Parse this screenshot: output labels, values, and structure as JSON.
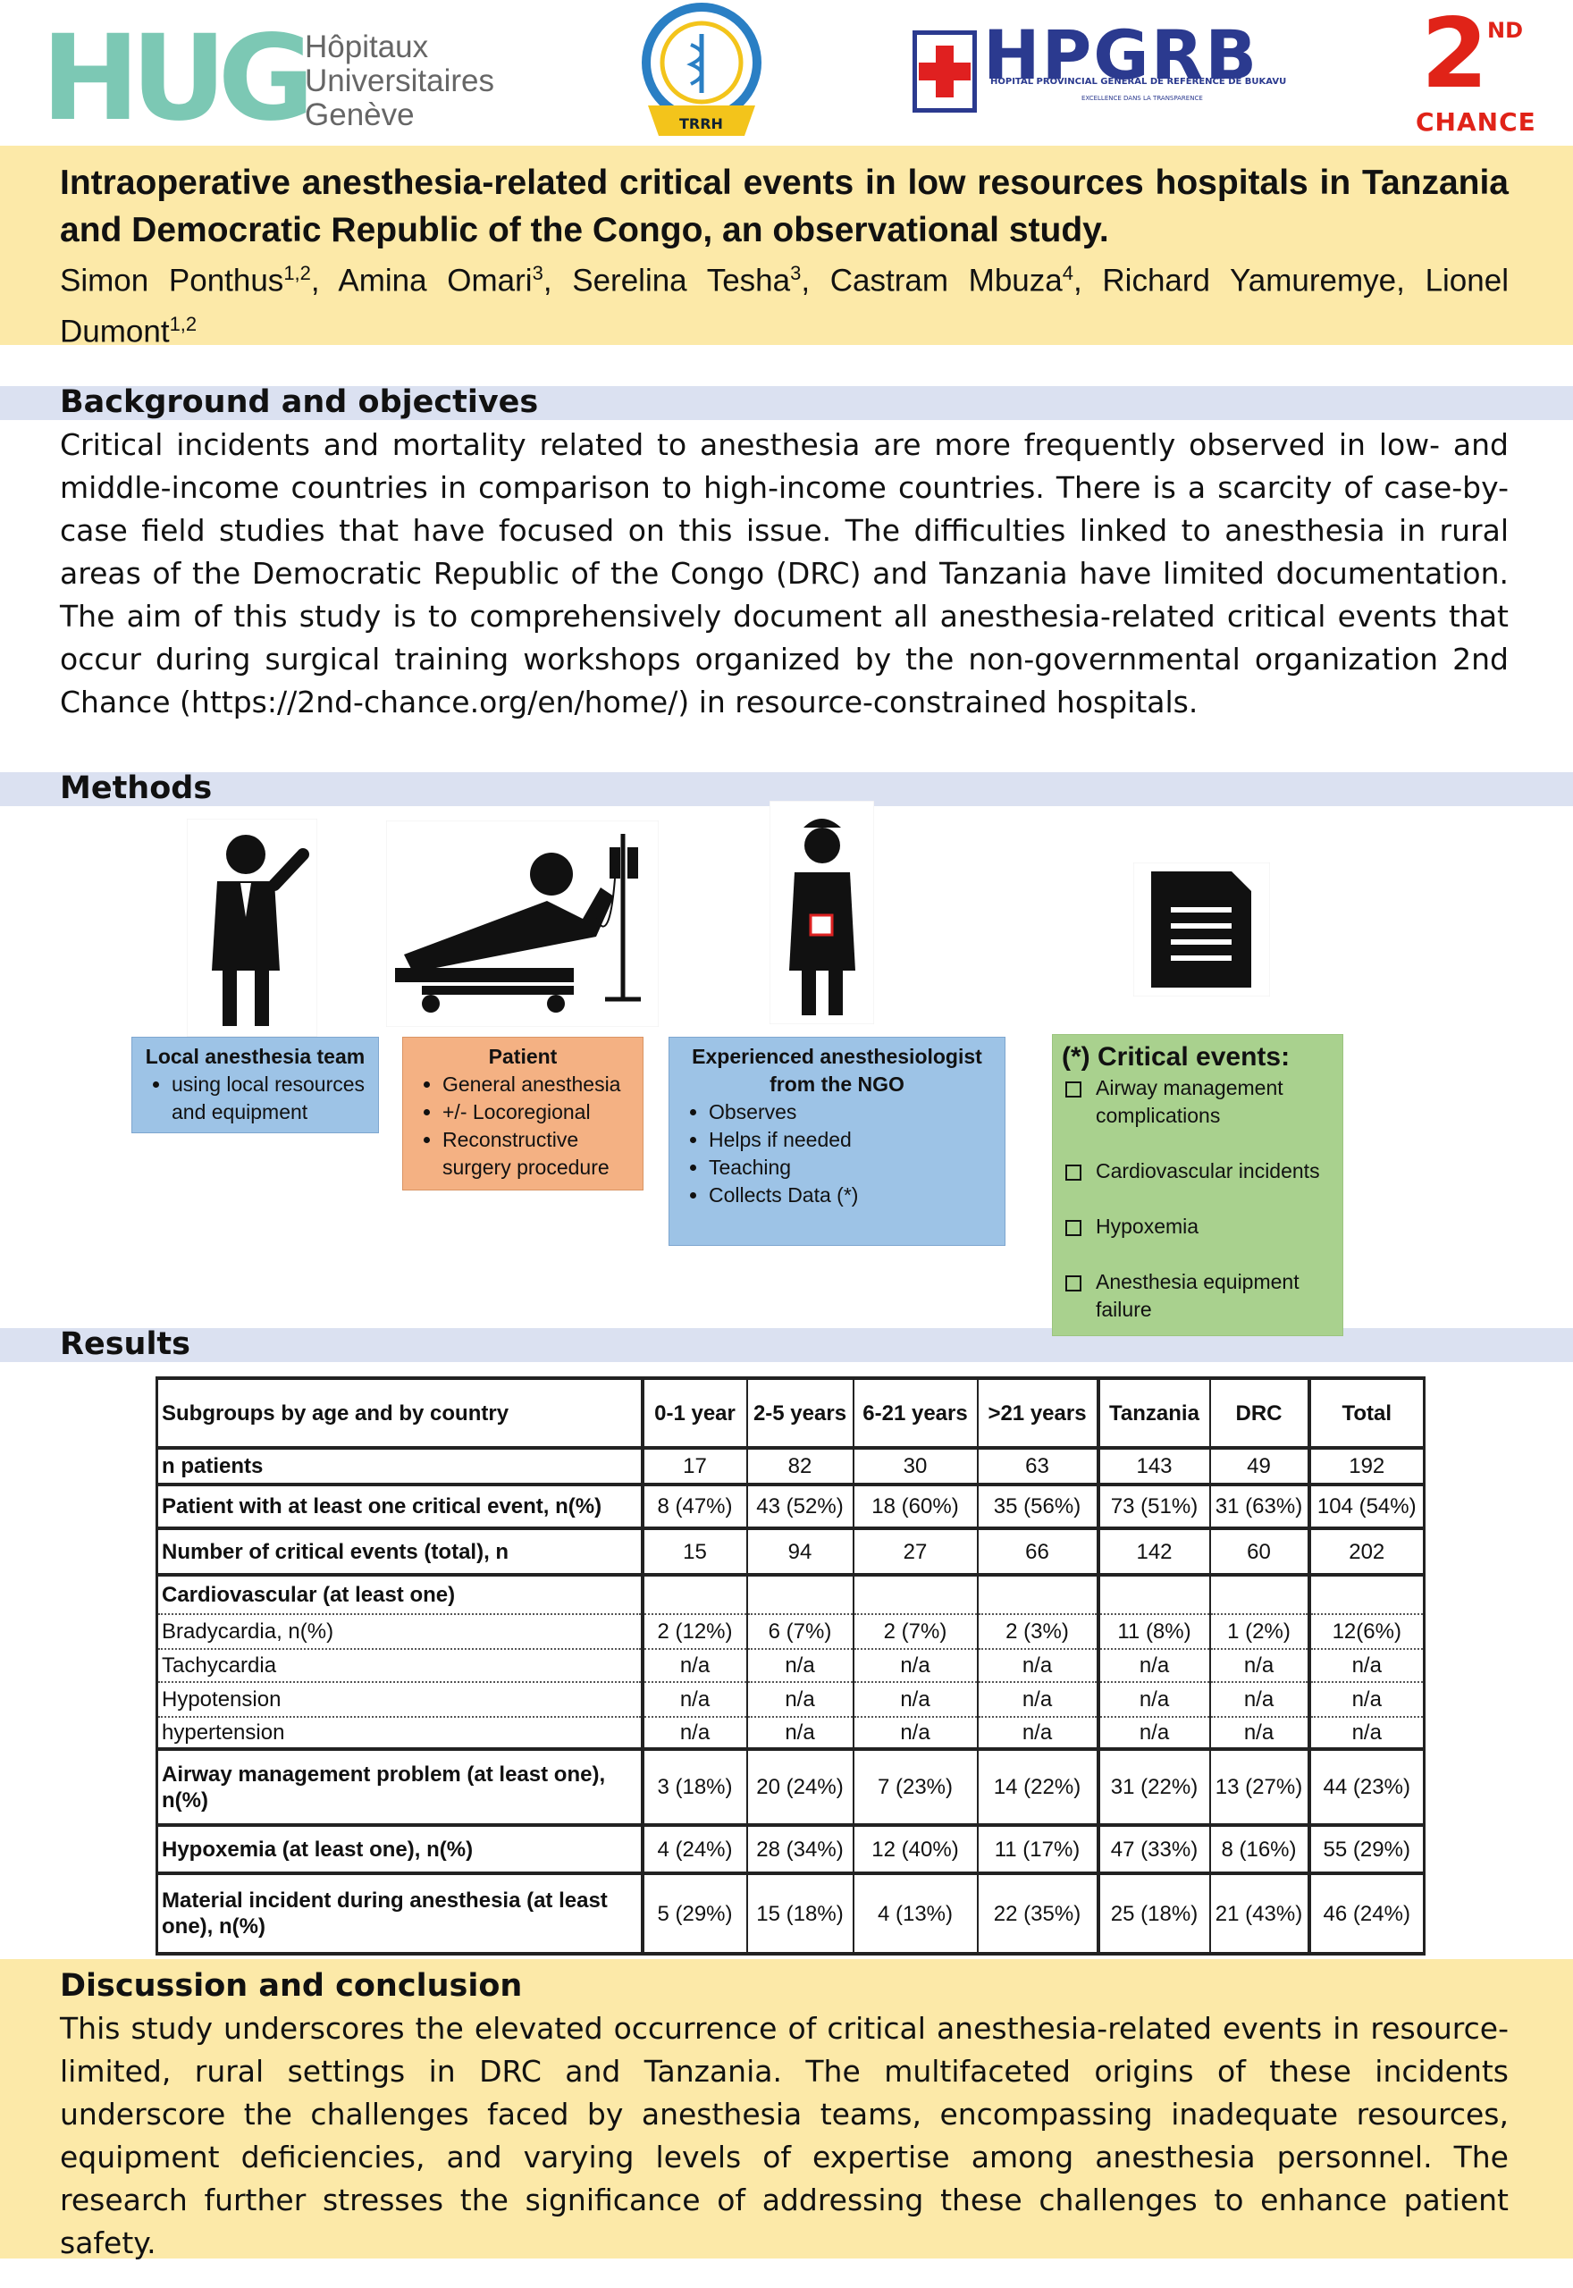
{
  "logos": {
    "hug": {
      "letters": "HUG",
      "line1": "Hôpitaux",
      "line2": "Universitaires",
      "line3": "Genève"
    },
    "trrh": {
      "label": "TRRH"
    },
    "hpgrb": {
      "letters": "HPGRB",
      "subtitle": "HOPITAL PROVINCIAL GENERAL DE REFERENCE DE BUKAVU",
      "motto": "EXCELLENCE DANS LA TRANSPARENCE"
    },
    "chance": {
      "number": "2",
      "suffix": "ND",
      "word": "CHANCE"
    }
  },
  "title": "Intraoperative anesthesia-related critical events in low resources hospitals in Tanzania and Democratic Republic of the Congo, an observational study.",
  "authors": [
    {
      "name": "Simon Ponthus",
      "sup": "1,2",
      "after": ","
    },
    {
      "name": "Amina Omari",
      "sup": "3",
      "after": ","
    },
    {
      "name": "Serelina Tesha",
      "sup": "3",
      "after": ","
    },
    {
      "name": "Castram Mbuza",
      "sup": "4",
      "after": ","
    },
    {
      "name": "Richard Yamuremye",
      "after": ","
    },
    {
      "name": "Lionel Dumont",
      "sup": "1,2"
    }
  ],
  "background": {
    "heading": "Background and objectives",
    "text": "Critical incidents and mortality related to anesthesia are more frequently observed in low- and middle-income countries in comparison to high-income countries. There is a scarcity of case-by-case field studies that have focused on this issue. The difficulties linked to anesthesia in rural areas of the Democratic Republic of the Congo (DRC) and Tanzania have limited documentation. The aim of this study is to comprehensively document all anesthesia-related critical events that occur during surgical training workshops organized by the non-governmental organization 2nd Chance (https://2nd-chance.org/en/home/) in resource-constrained hospitals."
  },
  "methods": {
    "heading": "Methods",
    "boxes": [
      {
        "title": "Local anesthesia team",
        "items": [
          "using local resources and equipment"
        ]
      },
      {
        "title": "Patient",
        "items": [
          "General anesthesia",
          "+/- Locoregional",
          "Reconstructive surgery procedure"
        ]
      },
      {
        "title": "Experienced anesthesiologist from the NGO",
        "items": [
          "Observes",
          "Helps if needed",
          "Teaching",
          "Collects Data (*)"
        ]
      }
    ],
    "critical_events": {
      "title": "(*) Critical events:",
      "items": [
        "Airway management complications",
        "Cardiovascular incidents",
        "Hypoxemia",
        "Anesthesia equipment failure"
      ]
    }
  },
  "results": {
    "heading": "Results",
    "table": {
      "columns": [
        "Subgroups by age and by country",
        "0-1 year",
        "2-5 years",
        "6-21 years",
        ">21 years",
        "Tanzania",
        "DRC",
        "Total"
      ],
      "rows": [
        {
          "label": "n patients",
          "cells": [
            "17",
            "82",
            "30",
            "63",
            "143",
            "49",
            "192"
          ]
        },
        {
          "label": "Patient with at least one critical event, n(%)",
          "cells": [
            "8 (47%)",
            "43 (52%)",
            "18 (60%)",
            "35 (56%)",
            "73 (51%)",
            "31 (63%)",
            "104 (54%)"
          ]
        },
        {
          "label": "Number of critical events (total), n",
          "cells": [
            "15",
            "94",
            "27",
            "66",
            "142",
            "60",
            "202"
          ]
        },
        {
          "label": "Cardiovascular (at least one)"
        },
        {
          "label": "Bradycardia, n(%)",
          "cells": [
            "2 (12%)",
            "6 (7%)",
            "2 (7%)",
            "2 (3%)",
            "11 (8%)",
            "1 (2%)",
            "12(6%)"
          ]
        },
        {
          "label": "Tachycardia",
          "cells": [
            "n/a",
            "n/a",
            "n/a",
            "n/a",
            "n/a",
            "n/a",
            "n/a"
          ]
        },
        {
          "label": "Hypotension",
          "cells": [
            "n/a",
            "n/a",
            "n/a",
            "n/a",
            "n/a",
            "n/a",
            "n/a"
          ]
        },
        {
          "label": "hypertension",
          "cells": [
            "n/a",
            "n/a",
            "n/a",
            "n/a",
            "n/a",
            "n/a",
            "n/a"
          ]
        },
        {
          "label": "Airway management problem (at least one), n(%)",
          "cells": [
            "3 (18%)",
            "20 (24%)",
            "7 (23%)",
            "14 (22%)",
            "31 (22%)",
            "13 (27%)",
            "44 (23%)"
          ]
        },
        {
          "label": "Hypoxemia (at least one), n(%)",
          "cells": [
            "4 (24%)",
            "28 (34%)",
            "12 (40%)",
            "11 (17%)",
            "47 (33%)",
            "8 (16%)",
            "55 (29%)"
          ]
        },
        {
          "label": "Material incident during anesthesia (at least one), n(%)",
          "cells": [
            "5 (29%)",
            "15 (18%)",
            "4 (13%)",
            "22 (35%)",
            "25 (18%)",
            "21 (43%)",
            "46 (24%)"
          ]
        }
      ]
    }
  },
  "discussion": {
    "heading": "Discussion and conclusion",
    "text": "This study underscores the elevated occurrence of critical anesthesia-related events in resource-limited, rural settings in DRC and Tanzania. The multifaceted origins of these incidents underscore the challenges faced by anesthesia teams, encompassing inadequate resources, equipment deficiencies, and varying levels of expertise among anesthesia personnel. The research further stresses the significance of addressing these challenges to enhance patient safety."
  }
}
